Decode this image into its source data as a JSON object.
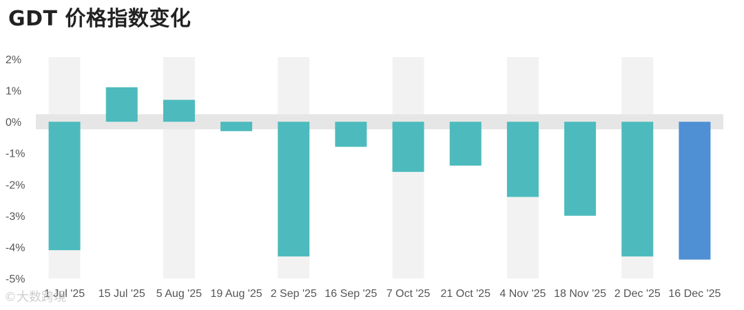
{
  "title": "GDT 价格指数变化",
  "watermark": "©大数跨境",
  "chart_data": {
    "type": "bar",
    "title": "GDT 价格指数变化",
    "categories": [
      "1 Jul '25",
      "15 Jul '25",
      "5 Aug '25",
      "19 Aug '25",
      "2 Sep '25",
      "16 Sep '25",
      "7 Oct '25",
      "21 Oct '25",
      "4 Nov '25",
      "18 Nov '25",
      "2 Dec '25",
      "16 Dec '25"
    ],
    "values": [
      -4.1,
      1.1,
      0.7,
      -0.3,
      -4.3,
      -0.8,
      -1.6,
      -1.4,
      -2.4,
      -3.0,
      -4.3,
      -4.4
    ],
    "ylim": [
      -5,
      2
    ],
    "yticks": [
      2,
      1,
      0,
      -1,
      -2,
      -3,
      -4,
      -5
    ],
    "ytick_labels": [
      "2%",
      "1%",
      "0%",
      "-1%",
      "-2%",
      "-3%",
      "-4%",
      "-5%"
    ],
    "xlabel": "",
    "ylabel": "",
    "grid": true,
    "colors": {
      "bar": "#4dbbbd",
      "highlight": "#4f8fd4",
      "band": "#f2f2f2",
      "zero_band": "#e6e6e6"
    },
    "highlight_index": 11
  }
}
